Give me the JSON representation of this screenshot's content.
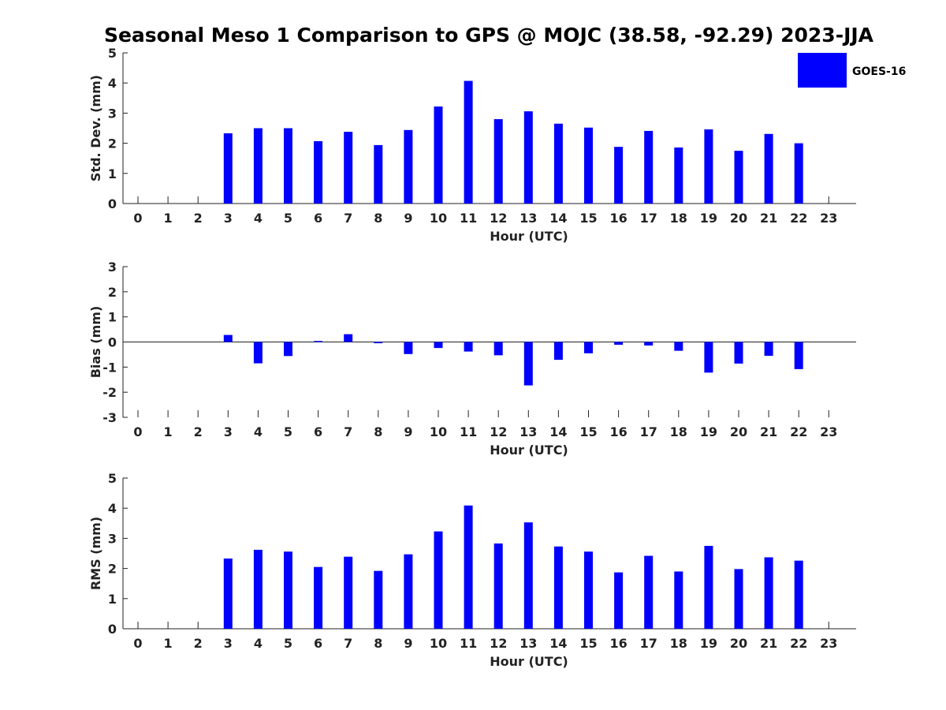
{
  "title": "Seasonal Meso 1 Comparison to GPS @ MOJC (38.58, -92.29) 2023-JJA",
  "legend": {
    "label": "GOES-16",
    "color": "#0000ff"
  },
  "chart_data": [
    {
      "type": "bar",
      "xlabel": "Hour (UTC)",
      "ylabel": "Std. Dev. (mm)",
      "ylim": [
        0,
        5
      ],
      "yticks": [
        0,
        1,
        2,
        3,
        4,
        5
      ],
      "categories": [
        "0",
        "1",
        "2",
        "3",
        "4",
        "5",
        "6",
        "7",
        "8",
        "9",
        "10",
        "11",
        "12",
        "13",
        "14",
        "15",
        "16",
        "17",
        "18",
        "19",
        "20",
        "21",
        "22",
        "23"
      ],
      "series": [
        {
          "name": "GOES-16",
          "color": "#0000ff",
          "values": [
            null,
            null,
            null,
            2.33,
            2.5,
            2.5,
            2.07,
            2.38,
            1.94,
            2.44,
            3.22,
            4.07,
            2.8,
            3.06,
            2.65,
            2.52,
            1.88,
            2.41,
            1.86,
            2.46,
            1.75,
            2.31,
            2.0,
            null
          ]
        }
      ]
    },
    {
      "type": "bar",
      "xlabel": "Hour (UTC)",
      "ylabel": "Bias (mm)",
      "ylim": [
        -3,
        3
      ],
      "yticks": [
        -3,
        -2,
        -1,
        0,
        1,
        2,
        3
      ],
      "categories": [
        "0",
        "1",
        "2",
        "3",
        "4",
        "5",
        "6",
        "7",
        "8",
        "9",
        "10",
        "11",
        "12",
        "13",
        "14",
        "15",
        "16",
        "17",
        "18",
        "19",
        "20",
        "21",
        "22",
        "23"
      ],
      "series": [
        {
          "name": "GOES-16",
          "color": "#0000ff",
          "values": [
            null,
            null,
            null,
            0.28,
            -0.85,
            -0.56,
            0.04,
            0.31,
            -0.05,
            -0.48,
            -0.24,
            -0.38,
            -0.53,
            -1.73,
            -0.71,
            -0.45,
            -0.11,
            -0.14,
            -0.35,
            -1.22,
            -0.86,
            -0.55,
            -1.08,
            null
          ]
        }
      ]
    },
    {
      "type": "bar",
      "xlabel": "Hour (UTC)",
      "ylabel": "RMS (mm)",
      "ylim": [
        0,
        5
      ],
      "yticks": [
        0,
        1,
        2,
        3,
        4,
        5
      ],
      "categories": [
        "0",
        "1",
        "2",
        "3",
        "4",
        "5",
        "6",
        "7",
        "8",
        "9",
        "10",
        "11",
        "12",
        "13",
        "14",
        "15",
        "16",
        "17",
        "18",
        "19",
        "20",
        "21",
        "22",
        "23"
      ],
      "series": [
        {
          "name": "GOES-16",
          "color": "#0000ff",
          "values": [
            null,
            null,
            null,
            2.33,
            2.62,
            2.56,
            2.05,
            2.39,
            1.92,
            2.47,
            3.23,
            4.09,
            2.83,
            3.53,
            2.73,
            2.56,
            1.87,
            2.42,
            1.9,
            2.75,
            1.98,
            2.37,
            2.26,
            null
          ]
        }
      ]
    }
  ]
}
